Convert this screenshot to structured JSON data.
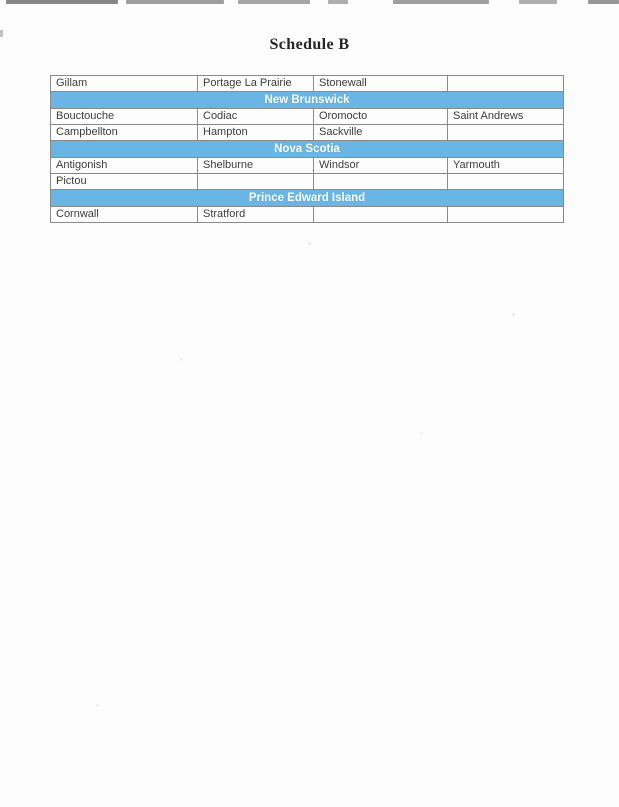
{
  "page": {
    "title": "Schedule B"
  },
  "colors": {
    "page_background": "#fdfdfd",
    "band_blue": "#69b6e4",
    "band_text": "#ffffff",
    "table_border": "#8a8a8a",
    "cell_text": "#3d3d3d",
    "title_text": "#262626"
  },
  "table": {
    "columns": 4,
    "rows": [
      {
        "type": "cities",
        "cells": [
          "Gillam",
          "Portage La Prairie",
          "Stonewall",
          ""
        ]
      },
      {
        "type": "province",
        "label": "New Brunswick"
      },
      {
        "type": "cities",
        "cells": [
          "Bouctouche",
          "Codiac",
          "Oromocto",
          "Saint Andrews"
        ]
      },
      {
        "type": "cities",
        "cells": [
          "Campbellton",
          "Hampton",
          "Sackville",
          ""
        ]
      },
      {
        "type": "province",
        "label": "Nova Scotia"
      },
      {
        "type": "cities",
        "cells": [
          "Antigonish",
          "Shelburne",
          "Windsor",
          "Yarmouth"
        ]
      },
      {
        "type": "cities",
        "cells": [
          "Pictou",
          "",
          "",
          ""
        ]
      },
      {
        "type": "province",
        "label": "Prince Edward Island"
      },
      {
        "type": "cities",
        "cells": [
          "Cornwall",
          "Stratford",
          "",
          ""
        ]
      }
    ]
  }
}
